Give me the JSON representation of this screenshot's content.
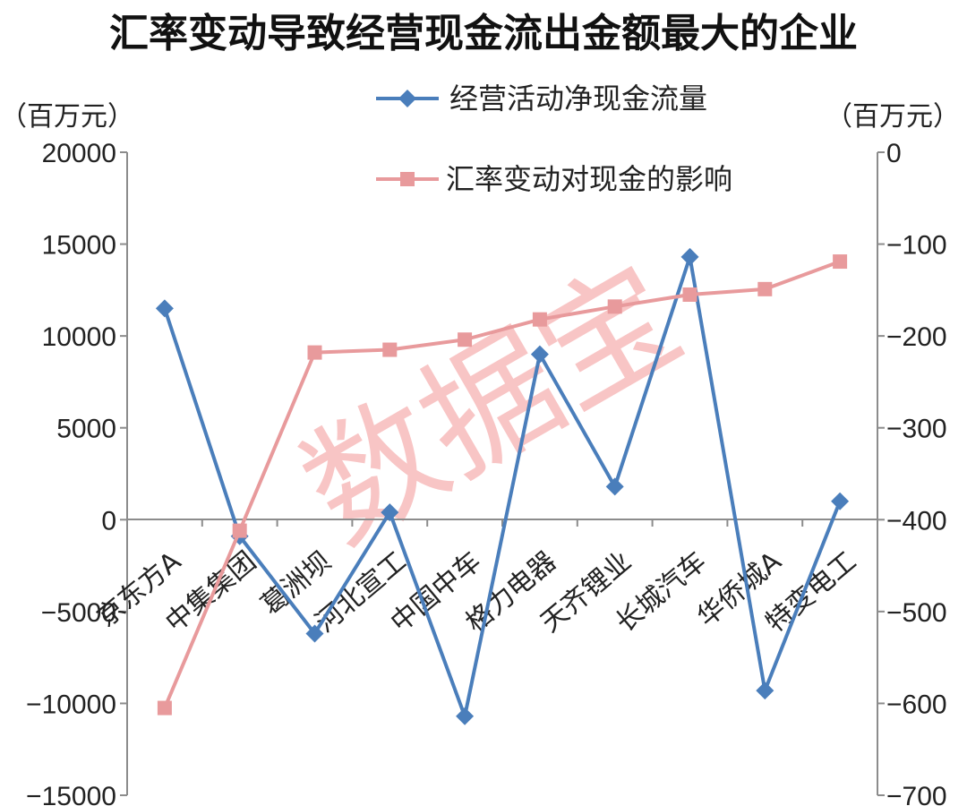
{
  "chart_data": {
    "type": "line",
    "title": "汇率变动导致经营现金流出金额最大的企业",
    "y_left_unit": "（百万元）",
    "y_right_unit": "（百万元）",
    "categories": [
      "京东方A",
      "中集集团",
      "葛洲坝",
      "河北宣工",
      "中国中车",
      "格力电器",
      "天齐锂业",
      "长城汽车",
      "华侨城A",
      "特变电工"
    ],
    "y_left_ticks": [
      "20000",
      "15000",
      "10000",
      "5000",
      "0",
      "−5000",
      "−10000",
      "−15000"
    ],
    "y_right_ticks": [
      "0",
      "−100",
      "−200",
      "−300",
      "−400",
      "−500",
      "−600",
      "−700"
    ],
    "ylim_left": [
      -15000,
      20000
    ],
    "ylim_right": [
      -700,
      0
    ],
    "legend_placement": "top-center",
    "watermark": "数据宝",
    "series": [
      {
        "name": "经营活动净现金流量",
        "axis": "left",
        "color": "#4a7ebb",
        "marker": "diamond",
        "values": [
          11500,
          -900,
          -6200,
          400,
          -10700,
          9000,
          1800,
          14300,
          -9300,
          1000
        ]
      },
      {
        "name": "汇率变动对现金的影响",
        "axis": "right",
        "color": "#e89a9c",
        "marker": "square",
        "values": [
          -605,
          -412,
          -218,
          -215,
          -204,
          -182,
          -168,
          -155,
          -149,
          -119
        ]
      }
    ]
  }
}
